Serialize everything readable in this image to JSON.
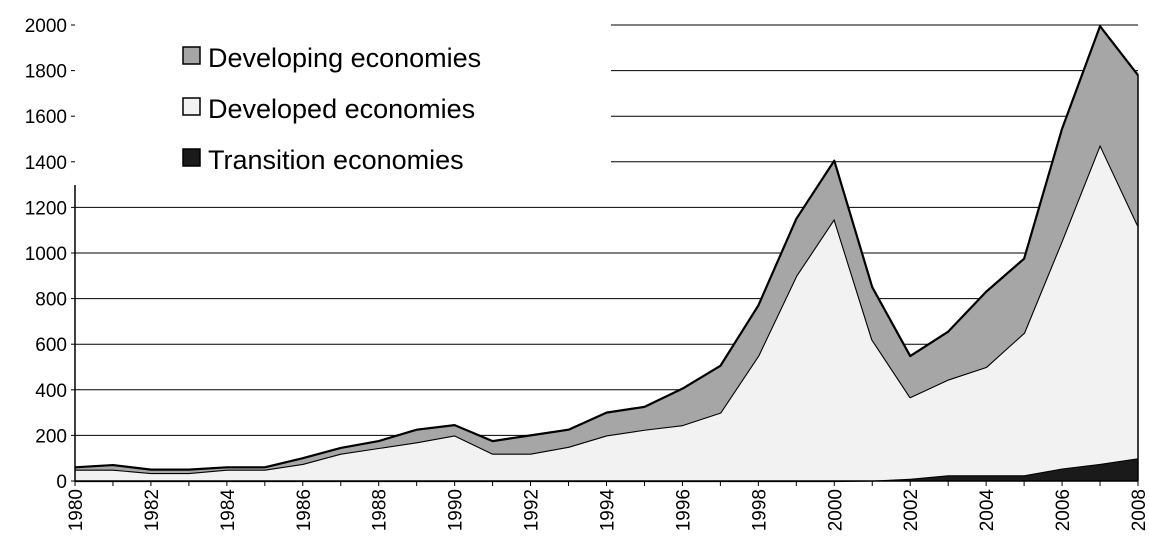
{
  "chart_data": {
    "type": "area",
    "stacked": true,
    "title": "",
    "xlabel": "",
    "ylabel": "",
    "x": [
      1980,
      1981,
      1982,
      1983,
      1984,
      1985,
      1986,
      1987,
      1988,
      1989,
      1990,
      1991,
      1992,
      1993,
      1994,
      1995,
      1996,
      1997,
      1998,
      1999,
      2000,
      2001,
      2002,
      2003,
      2004,
      2005,
      2006,
      2007,
      2008
    ],
    "x_tick_labels": [
      "1980",
      "1982",
      "1984",
      "1986",
      "1988",
      "1990",
      "1992",
      "1994",
      "1996",
      "1998",
      "2000",
      "2002",
      "2004",
      "2006",
      "2008"
    ],
    "y_tick_labels": [
      "0",
      "200",
      "400",
      "600",
      "800",
      "1000",
      "1200",
      "1400",
      "1600",
      "1800",
      "2000"
    ],
    "ylim": [
      0,
      2000
    ],
    "grid": "horizontal",
    "legend_position": "top-left",
    "series": [
      {
        "name": "Transition economies",
        "color": "#1a1a1a",
        "values": [
          0,
          0,
          0,
          0,
          0,
          0,
          0,
          0,
          0,
          0,
          0,
          0,
          0,
          0,
          0,
          0,
          0,
          0,
          0,
          0,
          0,
          2,
          10,
          25,
          25,
          25,
          55,
          75,
          100
        ]
      },
      {
        "name": "Developed economies",
        "color": "#f2f2f2",
        "values": [
          50,
          50,
          35,
          35,
          50,
          50,
          75,
          120,
          145,
          170,
          200,
          120,
          120,
          150,
          200,
          225,
          245,
          300,
          550,
          900,
          1150,
          618,
          358,
          420,
          475,
          625,
          1000,
          1400,
          1020
        ]
      },
      {
        "name": "Developing economies",
        "color": "#a6a6a6",
        "values": [
          10,
          20,
          15,
          15,
          10,
          10,
          25,
          25,
          30,
          55,
          45,
          55,
          80,
          75,
          100,
          100,
          160,
          205,
          220,
          250,
          255,
          230,
          180,
          210,
          330,
          325,
          490,
          520,
          660
        ]
      }
    ],
    "legend_order": [
      "Developing economies",
      "Developed economies",
      "Transition economies"
    ]
  }
}
